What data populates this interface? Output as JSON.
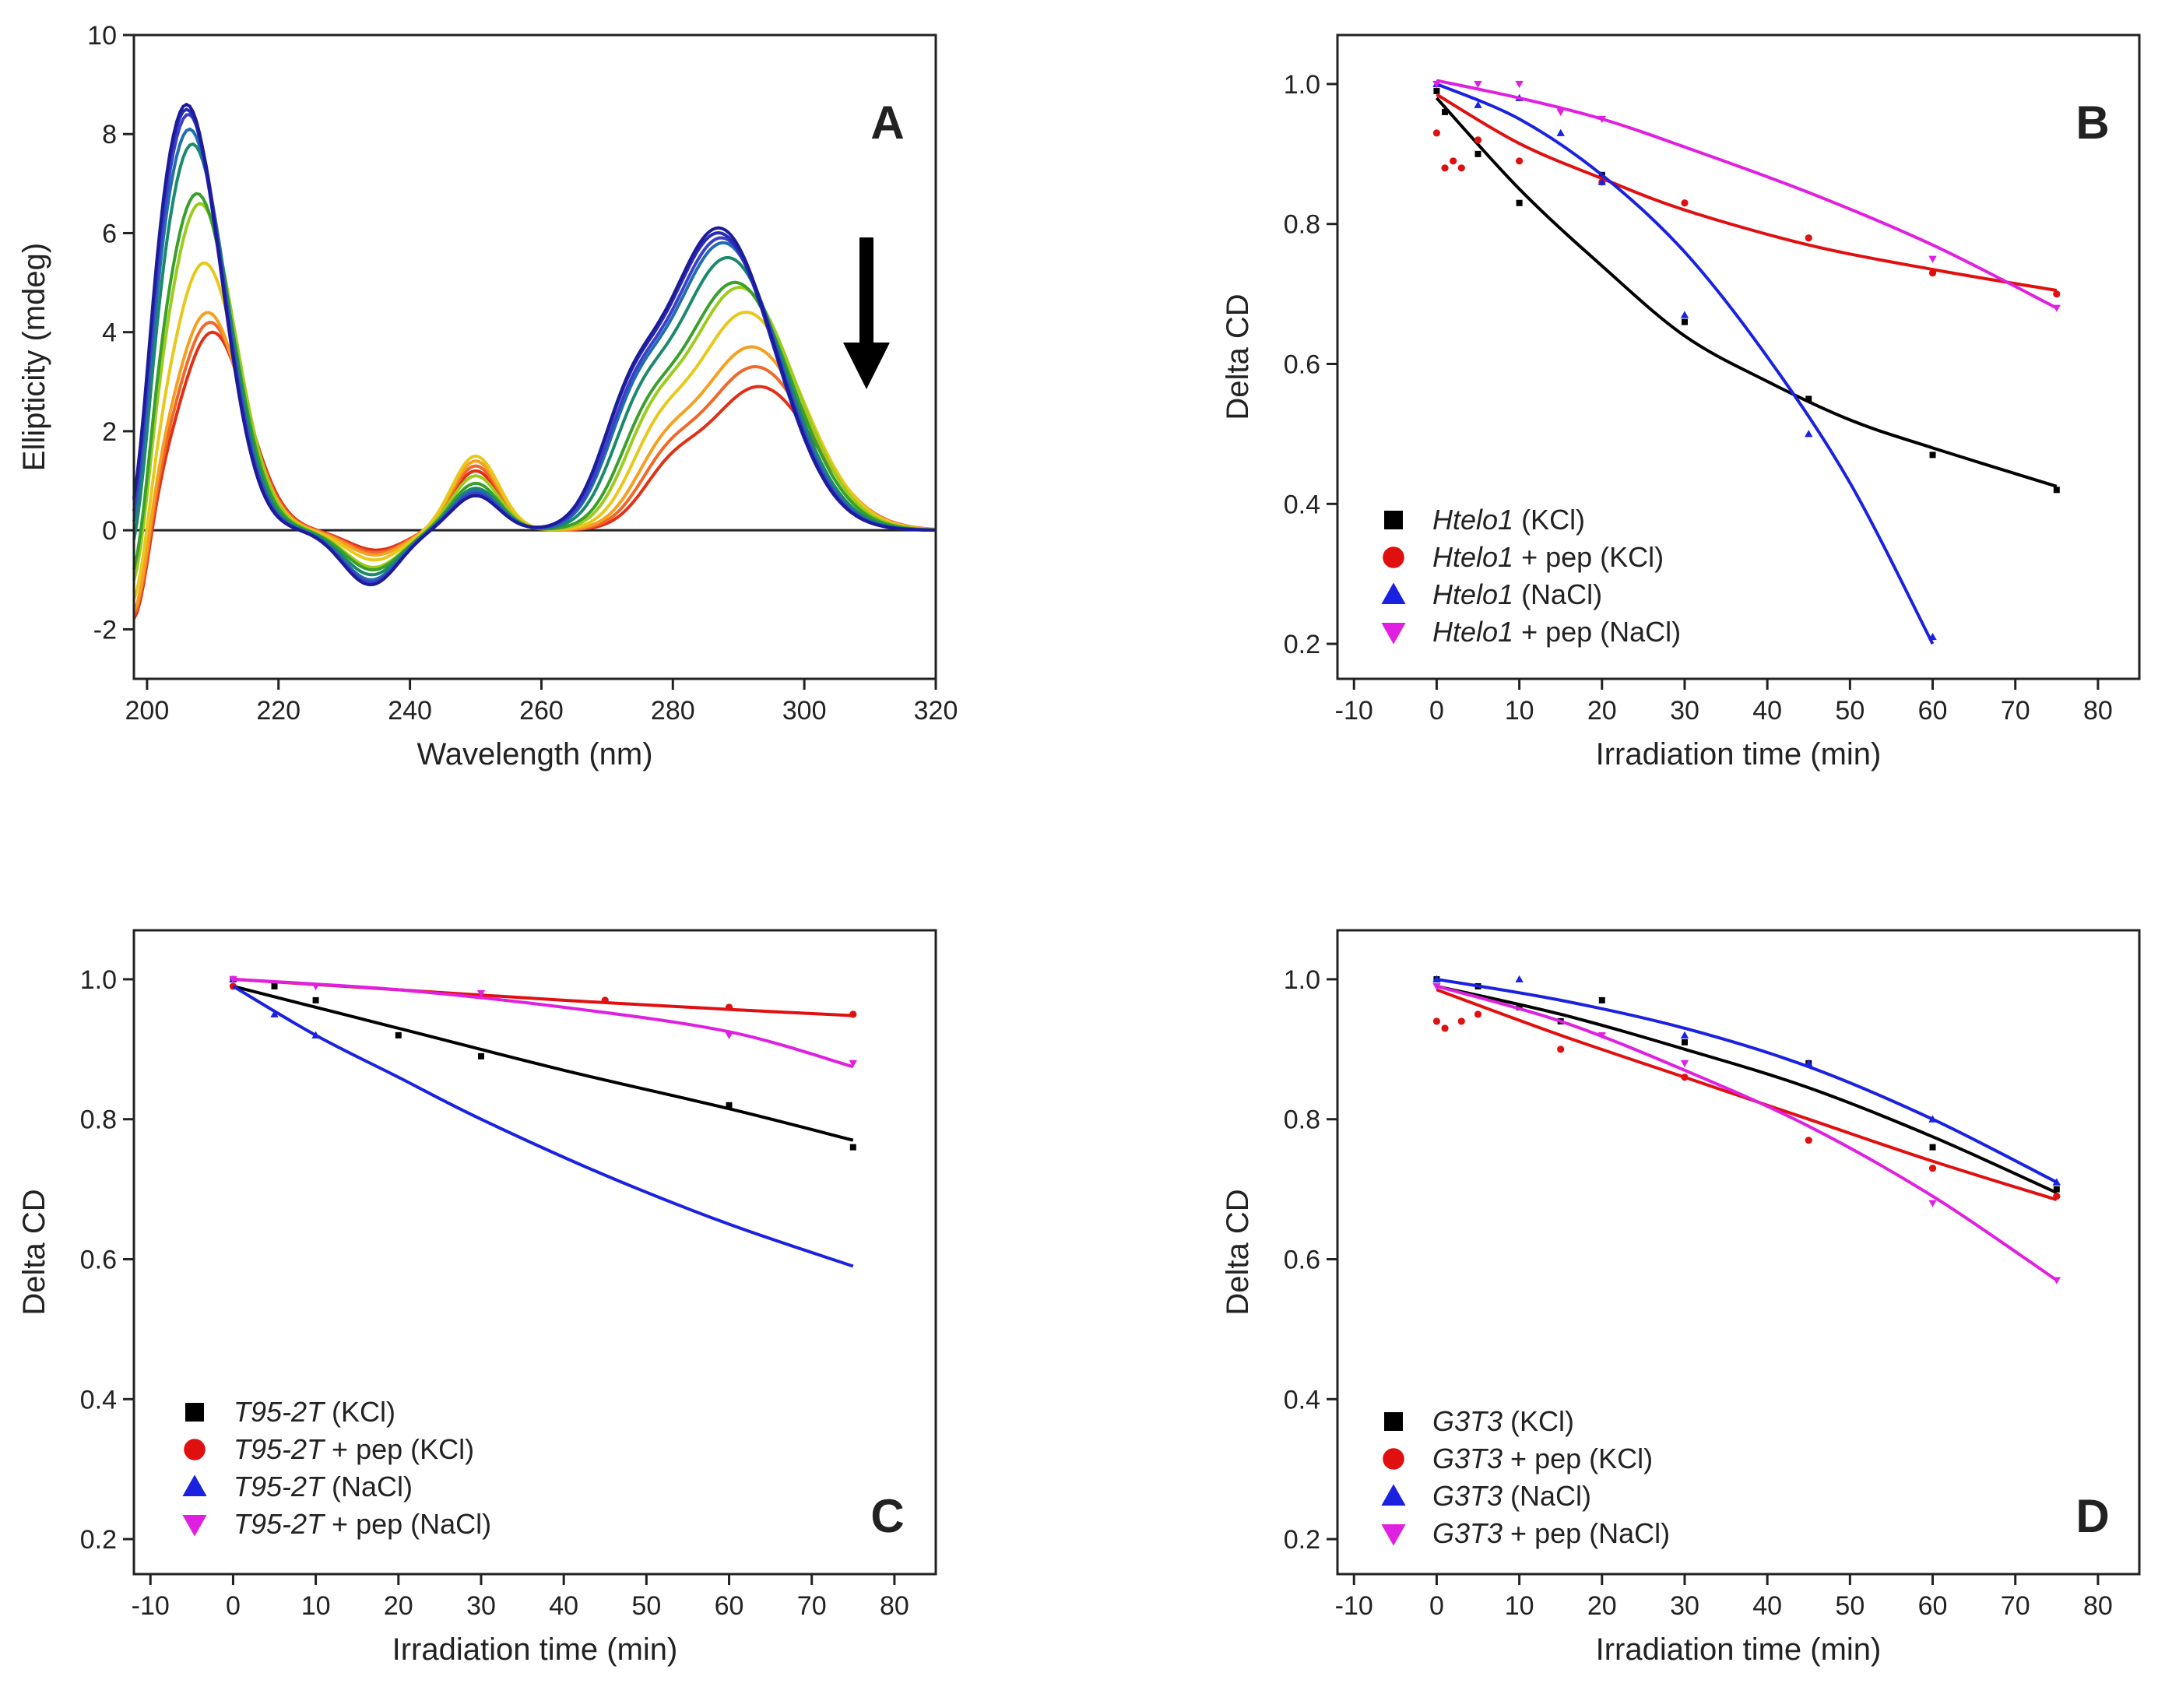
{
  "figure_title": "",
  "chart_data": [
    {
      "panel": "A",
      "type": "line",
      "title": "",
      "xlabel": "Wavelength (nm)",
      "ylabel": "Ellipticity (mdeg)",
      "xlim": [
        198,
        320
      ],
      "ylim": [
        -3,
        10
      ],
      "xticks": [
        200,
        220,
        240,
        260,
        280,
        300,
        320
      ],
      "yticks": [
        -2,
        0,
        2,
        4,
        6,
        8,
        10
      ],
      "xtick_labels": [
        "200",
        "220",
        "240",
        "260",
        "280",
        "300",
        "320"
      ],
      "ytick_labels": [
        "-2",
        "0",
        "2",
        "4",
        "6",
        "8",
        "10"
      ],
      "annotation": "decreasing signal with irradiation (arrow)",
      "series": [
        {
          "name": "s1",
          "color": "#1c1c9a",
          "peak1": 8.6,
          "peak2": 6.1,
          "mid": 0.7,
          "min": -1.1,
          "shift": 0
        },
        {
          "name": "s2",
          "color": "#2a2ab8",
          "peak1": 8.5,
          "peak2": 6.0,
          "mid": 0.7,
          "min": -1.1,
          "shift": 0
        },
        {
          "name": "s3",
          "color": "#3b40c8",
          "peak1": 8.4,
          "peak2": 5.9,
          "mid": 0.75,
          "min": -1.05,
          "shift": 0.3
        },
        {
          "name": "s4",
          "color": "#1f6fb0",
          "peak1": 8.1,
          "peak2": 5.8,
          "mid": 0.8,
          "min": -1.0,
          "shift": 0.5
        },
        {
          "name": "s5",
          "color": "#1a8a6a",
          "peak1": 7.8,
          "peak2": 5.5,
          "mid": 0.85,
          "min": -0.9,
          "shift": 1.0
        },
        {
          "name": "s6",
          "color": "#3aa02c",
          "peak1": 6.8,
          "peak2": 5.0,
          "mid": 0.95,
          "min": -0.8,
          "shift": 1.8
        },
        {
          "name": "s7",
          "color": "#9ccc1c",
          "peak1": 6.6,
          "peak2": 4.9,
          "mid": 1.1,
          "min": -0.75,
          "shift": 2.3
        },
        {
          "name": "s8",
          "color": "#e8c81a",
          "peak1": 5.4,
          "peak2": 4.4,
          "mid": 1.5,
          "min": -0.6,
          "shift": 3.0
        },
        {
          "name": "s9",
          "color": "#f5a020",
          "peak1": 4.4,
          "peak2": 3.7,
          "mid": 1.4,
          "min": -0.5,
          "shift": 3.6
        },
        {
          "name": "s10",
          "color": "#f0682a",
          "peak1": 4.2,
          "peak2": 3.3,
          "mid": 1.3,
          "min": -0.45,
          "shift": 4.0
        },
        {
          "name": "s11",
          "color": "#e03018",
          "peak1": 4.0,
          "peak2": 2.9,
          "mid": 1.2,
          "min": -0.4,
          "shift": 4.4
        }
      ]
    },
    {
      "panel": "B",
      "type": "scatter",
      "title": "",
      "xlabel": "Irradiation time (min)",
      "ylabel": "Delta CD",
      "xlim": [
        -12,
        85
      ],
      "ylim": [
        0.15,
        1.07
      ],
      "xticks": [
        -10,
        0,
        10,
        20,
        30,
        40,
        50,
        60,
        70,
        80
      ],
      "yticks": [
        0.2,
        0.4,
        0.6,
        0.8,
        1.0
      ],
      "xtick_labels": [
        "-10",
        "0",
        "10",
        "20",
        "30",
        "40",
        "50",
        "60",
        "70",
        "80"
      ],
      "ytick_labels": [
        "0.2",
        "0.4",
        "0.6",
        "0.8",
        "1.0"
      ],
      "legend_position": "bottom-left",
      "series": [
        {
          "name": "Htelo1",
          "suffix": " (KCl)",
          "color": "#000000",
          "marker": "square",
          "x": [
            0,
            1,
            5,
            10,
            20,
            30,
            45,
            60,
            75
          ],
          "y": [
            0.99,
            0.96,
            0.9,
            0.83,
            0.87,
            0.66,
            0.55,
            0.47,
            0.42
          ],
          "fit_x": [
            0,
            10,
            20,
            30,
            40,
            50,
            60,
            75
          ],
          "fit_y": [
            0.98,
            0.85,
            0.74,
            0.64,
            0.575,
            0.52,
            0.48,
            0.425
          ]
        },
        {
          "name": "Htelo1",
          "suffix": " + pep (KCl)",
          "color": "#e01010",
          "marker": "circle",
          "x": [
            0,
            1,
            2,
            3,
            5,
            10,
            20,
            30,
            45,
            60,
            75
          ],
          "y": [
            0.93,
            0.88,
            0.89,
            0.88,
            0.92,
            0.89,
            0.86,
            0.83,
            0.78,
            0.73,
            0.7
          ],
          "fit_x": [
            0,
            10,
            20,
            30,
            45,
            60,
            75
          ],
          "fit_y": [
            0.985,
            0.915,
            0.865,
            0.82,
            0.77,
            0.735,
            0.705
          ]
        },
        {
          "name": "Htelo1",
          "suffix": " (NaCl)",
          "color": "#1a22e0",
          "marker": "triangle",
          "x": [
            0,
            5,
            10,
            15,
            20,
            30,
            45,
            60
          ],
          "y": [
            1.0,
            0.97,
            0.98,
            0.93,
            0.86,
            0.67,
            0.5,
            0.21
          ],
          "fit_x": [
            0,
            10,
            20,
            30,
            40,
            50,
            60
          ],
          "fit_y": [
            1.0,
            0.95,
            0.87,
            0.76,
            0.61,
            0.43,
            0.2
          ]
        },
        {
          "name": "Htelo1",
          "suffix": " + pep (NaCl)",
          "color": "#e020e0",
          "marker": "triangle-down",
          "x": [
            0,
            5,
            10,
            15,
            20,
            60,
            75
          ],
          "y": [
            1.0,
            1.0,
            1.0,
            0.96,
            0.95,
            0.75,
            0.68
          ],
          "fit_x": [
            0,
            10,
            20,
            30,
            45,
            60,
            75
          ],
          "fit_y": [
            1.005,
            0.98,
            0.95,
            0.91,
            0.845,
            0.77,
            0.68
          ]
        }
      ]
    },
    {
      "panel": "C",
      "type": "scatter",
      "title": "",
      "xlabel": "Irradiation time (min)",
      "ylabel": "Delta CD",
      "xlim": [
        -12,
        85
      ],
      "ylim": [
        0.15,
        1.07
      ],
      "xticks": [
        -10,
        0,
        10,
        20,
        30,
        40,
        50,
        60,
        70,
        80
      ],
      "yticks": [
        0.2,
        0.4,
        0.6,
        0.8,
        1.0
      ],
      "xtick_labels": [
        "-10",
        "0",
        "10",
        "20",
        "30",
        "40",
        "50",
        "60",
        "70",
        "80"
      ],
      "ytick_labels": [
        "0.2",
        "0.4",
        "0.6",
        "0.8",
        "1.0"
      ],
      "legend_position": "bottom-left",
      "series": [
        {
          "name": "T95-2T",
          "suffix": " (KCl)",
          "color": "#000000",
          "marker": "square",
          "x": [
            0,
            5,
            10,
            20,
            30,
            60,
            75
          ],
          "y": [
            1.0,
            0.99,
            0.97,
            0.92,
            0.89,
            0.82,
            0.76
          ],
          "fit_x": [
            0,
            20,
            40,
            60,
            75
          ],
          "fit_y": [
            0.99,
            0.93,
            0.87,
            0.815,
            0.77
          ]
        },
        {
          "name": "T95-2T",
          "suffix": " + pep (KCl)",
          "color": "#e01010",
          "marker": "circle",
          "x": [
            0,
            45,
            60,
            75
          ],
          "y": [
            0.99,
            0.97,
            0.96,
            0.95
          ],
          "fit_x": [
            0,
            20,
            40,
            60,
            75
          ],
          "fit_y": [
            1.0,
            0.985,
            0.97,
            0.957,
            0.948
          ]
        },
        {
          "name": "T95-2T",
          "suffix": " (NaCl)",
          "color": "#1a22e0",
          "marker": "triangle",
          "x": [
            0,
            5,
            10
          ],
          "y": [
            1.0,
            0.95,
            0.92
          ],
          "fit_x": [
            0,
            10,
            20,
            30,
            45,
            60,
            75
          ],
          "fit_y": [
            0.99,
            0.92,
            0.86,
            0.8,
            0.72,
            0.65,
            0.59
          ]
        },
        {
          "name": "T95-2T",
          "suffix": " + pep (NaCl)",
          "color": "#e020e0",
          "marker": "triangle-down",
          "x": [
            0,
            10,
            30,
            60,
            75
          ],
          "y": [
            1.0,
            0.99,
            0.98,
            0.92,
            0.88
          ],
          "fit_x": [
            0,
            20,
            40,
            60,
            75
          ],
          "fit_y": [
            1.0,
            0.985,
            0.96,
            0.925,
            0.875
          ]
        }
      ]
    },
    {
      "panel": "D",
      "type": "scatter",
      "title": "",
      "xlabel": "Irradiation time (min)",
      "ylabel": "Delta CD",
      "xlim": [
        -12,
        85
      ],
      "ylim": [
        0.15,
        1.07
      ],
      "xticks": [
        -10,
        0,
        10,
        20,
        30,
        40,
        50,
        60,
        70,
        80
      ],
      "yticks": [
        0.2,
        0.4,
        0.6,
        0.8,
        1.0
      ],
      "xtick_labels": [
        "-10",
        "0",
        "10",
        "20",
        "30",
        "40",
        "50",
        "60",
        "70",
        "80"
      ],
      "ytick_labels": [
        "0.2",
        "0.4",
        "0.6",
        "0.8",
        "1.0"
      ],
      "legend_position": "bottom-left",
      "series": [
        {
          "name": "G3T3",
          "suffix": " (KCl)",
          "color": "#000000",
          "marker": "square",
          "x": [
            0,
            5,
            10,
            15,
            20,
            30,
            45,
            60,
            75
          ],
          "y": [
            1.0,
            0.99,
            0.96,
            0.94,
            0.97,
            0.91,
            0.88,
            0.76,
            0.7
          ],
          "fit_x": [
            0,
            15,
            30,
            45,
            60,
            75
          ],
          "fit_y": [
            0.99,
            0.95,
            0.9,
            0.845,
            0.775,
            0.695
          ]
        },
        {
          "name": "G3T3",
          "suffix": " + pep (KCl)",
          "color": "#e01010",
          "marker": "circle",
          "x": [
            0,
            1,
            3,
            5,
            15,
            30,
            45,
            60,
            75
          ],
          "y": [
            0.94,
            0.93,
            0.94,
            0.95,
            0.9,
            0.86,
            0.77,
            0.73,
            0.69
          ],
          "fit_x": [
            0,
            15,
            30,
            45,
            60,
            75
          ],
          "fit_y": [
            0.985,
            0.92,
            0.86,
            0.8,
            0.74,
            0.685
          ]
        },
        {
          "name": "G3T3",
          "suffix": " (NaCl)",
          "color": "#1a22e0",
          "marker": "triangle",
          "x": [
            0,
            10,
            30,
            45,
            60,
            75
          ],
          "y": [
            1.0,
            1.0,
            0.92,
            0.88,
            0.8,
            0.71
          ],
          "fit_x": [
            0,
            15,
            30,
            45,
            60,
            75
          ],
          "fit_y": [
            1.0,
            0.97,
            0.93,
            0.875,
            0.8,
            0.71
          ]
        },
        {
          "name": "G3T3",
          "suffix": " + pep (NaCl)",
          "color": "#e020e0",
          "marker": "triangle-down",
          "x": [
            0,
            20,
            30,
            60,
            75
          ],
          "y": [
            0.99,
            0.92,
            0.88,
            0.68,
            0.57
          ],
          "fit_x": [
            0,
            15,
            30,
            45,
            60,
            75
          ],
          "fit_y": [
            0.99,
            0.94,
            0.87,
            0.79,
            0.69,
            0.57
          ]
        }
      ]
    }
  ]
}
